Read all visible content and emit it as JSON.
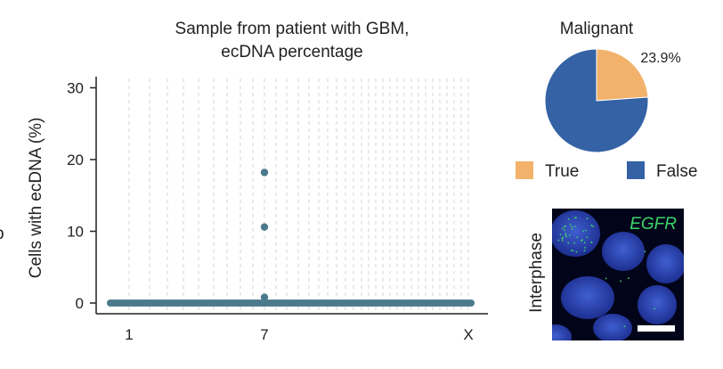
{
  "chart_data": [
    {
      "type": "scatter",
      "title": "Sample from patient with GBM,\necDNA percentage",
      "title_lines": [
        "Sample from patient with GBM,",
        "ecDNA percentage"
      ],
      "ylabel": "Cells with ecDNA (%)",
      "ylabel_partial": "b",
      "xlabel": "",
      "x_tick_labels": [
        "1",
        "7",
        "X"
      ],
      "y_ticks": [
        0,
        10,
        20,
        30
      ],
      "ylim": [
        0,
        31
      ],
      "grid": "vertical dashed lines per chromosome",
      "series": [
        {
          "points": [
            {
              "chromosome": "7",
              "y": 18.2
            },
            {
              "chromosome": "7",
              "y": 10.6
            },
            {
              "chromosome": "7",
              "y": 0.8
            }
          ],
          "baseline_y": 0,
          "color": "#4a7a8c"
        }
      ]
    },
    {
      "type": "pie",
      "title": "Malignant",
      "slices": [
        {
          "label": "True",
          "value": 23.9,
          "color": "#f2b26b"
        },
        {
          "label": "False",
          "value": 76.1,
          "color": "#3462a5"
        }
      ],
      "data_label": "23.9%",
      "legend": [
        "True",
        "False"
      ],
      "legend_placement": "bottom"
    }
  ],
  "micrograph": {
    "side_label": "Interphase",
    "stain_label": "EGFR",
    "stain_color": "#3dd46b"
  }
}
